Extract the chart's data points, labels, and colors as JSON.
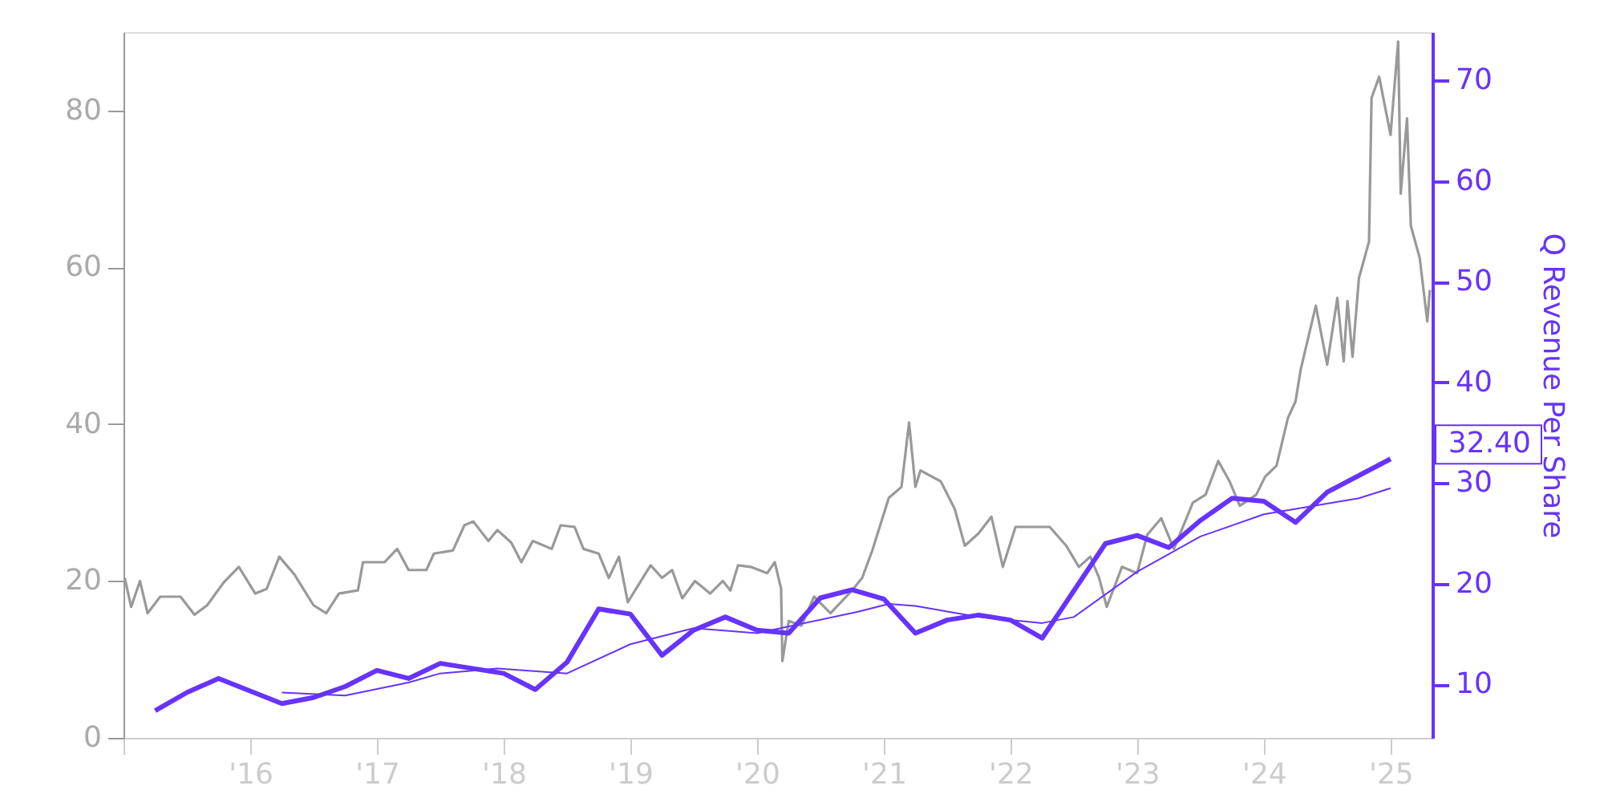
{
  "chart_data": {
    "type": "line",
    "y2label": "Q Revenue Per Share",
    "xlim": [
      2015.0,
      2025.33
    ],
    "xticks": [
      {
        "value": 2015,
        "label": null
      },
      {
        "value": 2016,
        "label": "'16"
      },
      {
        "value": 2017,
        "label": "'17"
      },
      {
        "value": 2018,
        "label": "'18"
      },
      {
        "value": 2019,
        "label": "'19"
      },
      {
        "value": 2020,
        "label": "'20"
      },
      {
        "value": 2021,
        "label": "'21"
      },
      {
        "value": 2022,
        "label": "'22"
      },
      {
        "value": 2023,
        "label": "'23"
      },
      {
        "value": 2024,
        "label": "'24"
      },
      {
        "value": 2025,
        "label": "'25"
      }
    ],
    "ylim": [
      0,
      90
    ],
    "yticks": [
      0,
      20,
      40,
      60,
      80
    ],
    "y2lim": [
      4.7,
      74.8
    ],
    "y2ticks": [
      10,
      20,
      30,
      40,
      50,
      60,
      70
    ],
    "grid": false,
    "marker": "none",
    "line_style": "solid",
    "series": [
      {
        "color": "#999999",
        "x": [
          2015.01,
          2015.06,
          2015.13,
          2015.19,
          2015.29,
          2015.45,
          2015.56,
          2015.66,
          2015.79,
          2015.91,
          2016.04,
          2016.13,
          2016.23,
          2016.35,
          2016.5,
          2016.6,
          2016.7,
          2016.85,
          2016.89,
          2017.06,
          2017.16,
          2017.25,
          2017.39,
          2017.45,
          2017.6,
          2017.69,
          2017.76,
          2017.88,
          2017.95,
          2018.06,
          2018.14,
          2018.23,
          2018.38,
          2018.45,
          2018.56,
          2018.63,
          2018.75,
          2018.83,
          2018.91,
          2018.98,
          2019.06,
          2019.16,
          2019.25,
          2019.33,
          2019.41,
          2019.51,
          2019.63,
          2019.73,
          2019.79,
          2019.85,
          2019.95,
          2020.08,
          2020.14,
          2020.19,
          2020.2,
          2020.25,
          2020.35,
          2020.45,
          2020.58,
          2020.75,
          2020.83,
          2020.91,
          2021.04,
          2021.14,
          2021.2,
          2021.25,
          2021.29,
          2021.45,
          2021.56,
          2021.64,
          2021.75,
          2021.85,
          2021.94,
          2022.04,
          2022.2,
          2022.31,
          2022.44,
          2022.54,
          2022.63,
          2022.7,
          2022.76,
          2022.88,
          2023.0,
          2023.08,
          2023.19,
          2023.29,
          2023.44,
          2023.54,
          2023.64,
          2023.73,
          2023.81,
          2023.94,
          2024.01,
          2024.1,
          2024.19,
          2024.25,
          2024.29,
          2024.41,
          2024.5,
          2024.58,
          2024.63,
          2024.66,
          2024.7,
          2024.75,
          2024.83,
          2024.85,
          2024.91,
          2025.0,
          2025.06,
          2025.08,
          2025.13,
          2025.16,
          2025.23,
          2025.29,
          2025.31
        ],
        "values": [
          20.4,
          16.7,
          20,
          15.9,
          18,
          18,
          15.7,
          16.9,
          19.8,
          21.8,
          18.4,
          19,
          23.1,
          20.8,
          16.9,
          15.9,
          18.4,
          18.8,
          22.4,
          22.4,
          24.1,
          21.4,
          21.4,
          23.5,
          23.9,
          27.1,
          27.6,
          25.1,
          26.5,
          24.9,
          22.4,
          25.1,
          24.1,
          27.1,
          26.9,
          24.1,
          23.5,
          20.4,
          23.1,
          17.3,
          19.4,
          22,
          20.4,
          21.4,
          17.8,
          20,
          18.4,
          20,
          18.8,
          22,
          21.8,
          21,
          22.4,
          19,
          9.8,
          14.9,
          14.3,
          18,
          15.9,
          18.8,
          20.4,
          23.9,
          30.6,
          32,
          40.2,
          32,
          34.1,
          32.7,
          29.2,
          24.5,
          26.1,
          28.2,
          21.8,
          26.9,
          26.9,
          26.9,
          24.5,
          21.8,
          23.1,
          20.4,
          16.7,
          21.8,
          21,
          25.9,
          28,
          24.1,
          30,
          31,
          35.3,
          32.7,
          29.6,
          31,
          33.3,
          34.7,
          40.8,
          42.9,
          46.9,
          55.1,
          47.6,
          56.1,
          48,
          55.7,
          48.6,
          58.6,
          63.3,
          81.6,
          84.3,
          76.9,
          88.8,
          69.4,
          79,
          65.3,
          61.2,
          53.1,
          57.1
        ]
      },
      {
        "color": "#6633ff",
        "axis": "y2",
        "x": [
          2015.25,
          2015.5,
          2015.75,
          2016.25,
          2016.5,
          2016.75,
          2017.0,
          2017.25,
          2017.5,
          2018.0,
          2018.25,
          2018.5,
          2018.75,
          2019.0,
          2019.25,
          2019.5,
          2019.75,
          2020.0,
          2020.25,
          2020.5,
          2020.75,
          2021.0,
          2021.25,
          2021.5,
          2021.75,
          2022.0,
          2022.25,
          2022.75,
          2023.0,
          2023.25,
          2023.5,
          2023.75,
          2024.0,
          2024.25,
          2024.5,
          2025.0
        ],
        "values": [
          7.4,
          9.2,
          10.6,
          8.1,
          8.7,
          9.8,
          11.4,
          10.6,
          12.1,
          11.1,
          9.5,
          12.2,
          17.5,
          17,
          12.9,
          15.4,
          16.7,
          15.4,
          15.1,
          18.6,
          19.4,
          18.5,
          15.1,
          16.4,
          16.9,
          16.4,
          14.6,
          24,
          24.8,
          23.6,
          26.3,
          28.5,
          28.2,
          26.1,
          29.1,
          32.4
        ]
      },
      {
        "color": "#6633ff",
        "axis": "y2",
        "x": [
          2016.25,
          2016.75,
          2017.25,
          2017.5,
          2017.95,
          2018.5,
          2019.0,
          2019.5,
          2020.0,
          2020.79,
          2021.04,
          2021.25,
          2021.75,
          2022.25,
          2022.5,
          2023.0,
          2023.5,
          2024.0,
          2024.75,
          2025.0
        ],
        "values": [
          9.2,
          8.9,
          10.2,
          11.1,
          11.6,
          11.1,
          14,
          15.6,
          15.1,
          17.2,
          18,
          17.8,
          16.7,
          16.1,
          16.7,
          21.2,
          24.7,
          26.9,
          28.5,
          29.5
        ]
      }
    ],
    "annotations": [
      {
        "text": "32.40",
        "x": 2025.0,
        "y": 32.4
      }
    ]
  }
}
